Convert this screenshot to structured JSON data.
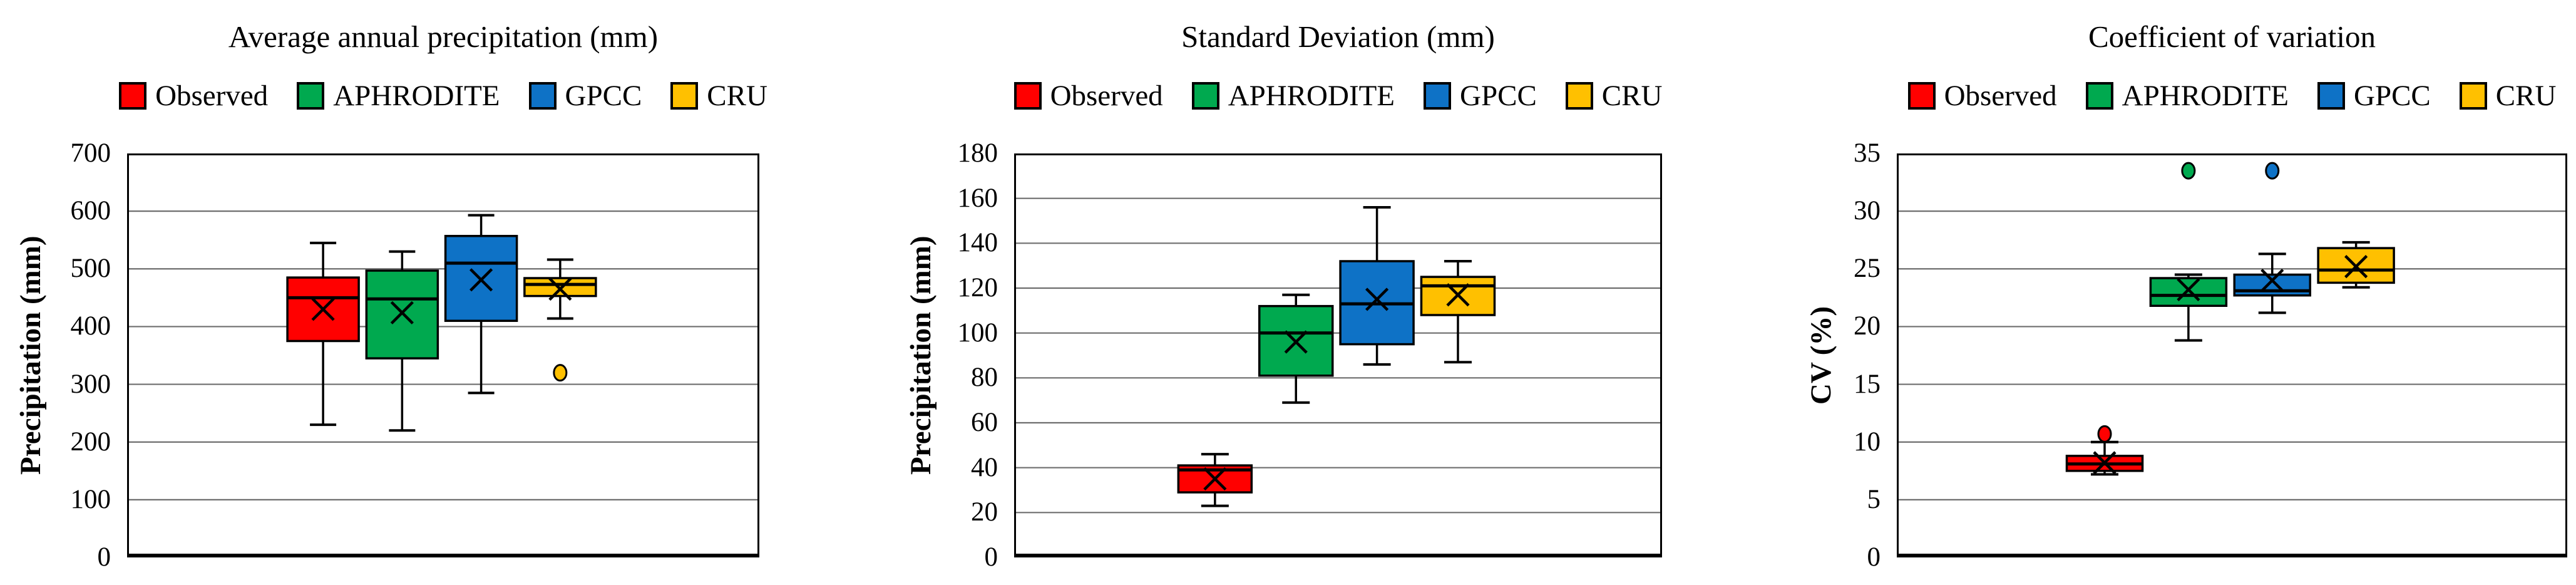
{
  "figure": {
    "background": "#FFFFFF",
    "grid_color": "#6E6E6E",
    "axis_color": "#000000"
  },
  "legend": {
    "labels": [
      "Observed",
      "APHRODITE",
      "GPCC",
      "CRU"
    ]
  },
  "palette": {
    "observed": "#FF0000",
    "aphrodite": "#00A94F",
    "gpcc": "#0E72C6",
    "cru": "#FFC000"
  },
  "chart_data": [
    {
      "type": "box",
      "title": "Average annual precipitation (mm)",
      "ylabel": "Precipitation (mm)",
      "ylim": [
        0,
        700
      ],
      "yticks": [
        0,
        100,
        200,
        300,
        400,
        500,
        600,
        700
      ],
      "grid": "horizontal",
      "legend_position": "top",
      "series": [
        {
          "name": "Observed",
          "color": "#FF0000",
          "low": 230,
          "q1": 375,
          "median": 450,
          "q3": 485,
          "high": 545,
          "mean": 430,
          "outliers": []
        },
        {
          "name": "APHRODITE",
          "color": "#00A94F",
          "low": 220,
          "q1": 345,
          "median": 448,
          "q3": 497,
          "high": 530,
          "mean": 424,
          "outliers": []
        },
        {
          "name": "GPCC",
          "color": "#0E72C6",
          "low": 285,
          "q1": 410,
          "median": 510,
          "q3": 557,
          "high": 593,
          "mean": 481,
          "outliers": []
        },
        {
          "name": "CRU",
          "color": "#FFC000",
          "low": 414,
          "q1": 453,
          "median": 473,
          "q3": 484,
          "high": 516,
          "mean": 465,
          "outliers": [
            320
          ]
        }
      ]
    },
    {
      "type": "box",
      "title": "Standard Deviation (mm)",
      "ylabel": "Precipitation (mm)",
      "ylim": [
        0,
        180
      ],
      "yticks": [
        0,
        20,
        40,
        60,
        80,
        100,
        120,
        140,
        160,
        180
      ],
      "grid": "horizontal",
      "legend_position": "top",
      "series": [
        {
          "name": "Observed",
          "color": "#FF0000",
          "low": 23,
          "q1": 29,
          "median": 39,
          "q3": 41,
          "high": 46,
          "mean": 35,
          "outliers": []
        },
        {
          "name": "APHRODITE",
          "color": "#00A94F",
          "low": 69,
          "q1": 81,
          "median": 100,
          "q3": 112,
          "high": 117,
          "mean": 96,
          "outliers": []
        },
        {
          "name": "GPCC",
          "color": "#0E72C6",
          "low": 86,
          "q1": 95,
          "median": 113,
          "q3": 132,
          "high": 156,
          "mean": 115,
          "outliers": []
        },
        {
          "name": "CRU",
          "color": "#FFC000",
          "low": 87,
          "q1": 108,
          "median": 121,
          "q3": 125,
          "high": 132,
          "mean": 117,
          "outliers": []
        }
      ]
    },
    {
      "type": "box",
      "title": "Coefficient of variation",
      "ylabel": "CV (%)",
      "ylim": [
        0,
        35
      ],
      "yticks": [
        0,
        5,
        10,
        15,
        20,
        25,
        30,
        35
      ],
      "grid": "horizontal",
      "legend_position": "top",
      "series": [
        {
          "name": "Observed",
          "color": "#FF0000",
          "low": 7.2,
          "q1": 7.5,
          "median": 8.1,
          "q3": 8.8,
          "high": 10,
          "mean": 8.2,
          "outliers": [
            10.7
          ]
        },
        {
          "name": "APHRODITE",
          "color": "#00A94F",
          "low": 18.8,
          "q1": 21.8,
          "median": 22.7,
          "q3": 24.2,
          "high": 24.5,
          "mean": 23.2,
          "outliers": [
            33.5
          ]
        },
        {
          "name": "GPCC",
          "color": "#0E72C6",
          "low": 21.2,
          "q1": 22.7,
          "median": 23.1,
          "q3": 24.5,
          "high": 26.3,
          "mean": 24,
          "outliers": [
            33.5
          ]
        },
        {
          "name": "CRU",
          "color": "#FFC000",
          "low": 23.4,
          "q1": 23.8,
          "median": 24.9,
          "q3": 26.8,
          "high": 27.3,
          "mean": 25.2,
          "outliers": []
        }
      ]
    }
  ]
}
